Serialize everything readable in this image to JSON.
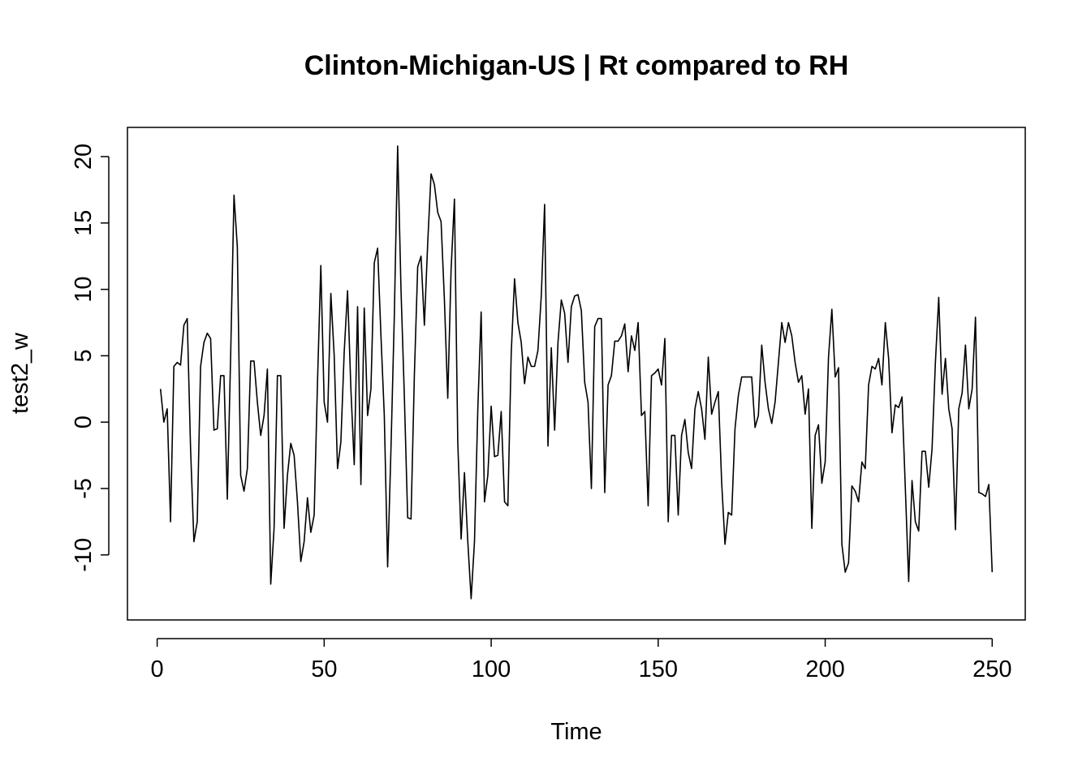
{
  "chart_data": {
    "type": "line",
    "title": "Clinton-Michigan-US | Rt compared to RH",
    "xlabel": "Time",
    "ylabel": "test2_w",
    "xlim": [
      -8.9,
      259.9
    ],
    "ylim": [
      -14.9,
      22.2
    ],
    "x_ticks": [
      0,
      50,
      100,
      150,
      200,
      250
    ],
    "x_tick_labels": [
      "0",
      "50",
      "100",
      "150",
      "200",
      "250"
    ],
    "y_ticks": [
      -10,
      -5,
      0,
      5,
      10,
      15,
      20
    ],
    "y_tick_labels": [
      "-10",
      "-5",
      "0",
      "5",
      "10",
      "15",
      "20"
    ],
    "grid": false,
    "line_color": "#000000",
    "x_start": 1,
    "series": [
      {
        "values": [
          2.5,
          0.0,
          1.0,
          -7.5,
          4.2,
          4.5,
          4.3,
          7.3,
          7.8,
          -2.0,
          -9.0,
          -7.5,
          4.2,
          6.0,
          6.7,
          6.3,
          -0.6,
          -0.5,
          3.5,
          3.5,
          -5.8,
          5.0,
          17.1,
          13.2,
          -4.0,
          -5.2,
          -3.5,
          4.6,
          4.6,
          1.5,
          -1.0,
          0.5,
          4.0,
          -12.2,
          -8.0,
          3.5,
          3.5,
          -8.0,
          -4.0,
          -1.6,
          -2.5,
          -6.0,
          -10.5,
          -9.0,
          -5.7,
          -8.3,
          -7.0,
          3.0,
          11.8,
          1.5,
          0.0,
          9.7,
          5.0,
          -3.5,
          -1.5,
          5.3,
          9.9,
          2.5,
          -3.2,
          8.7,
          -4.7,
          8.6,
          0.5,
          2.5,
          12.0,
          13.1,
          6.5,
          0.5,
          -10.9,
          -2.0,
          8.0,
          20.8,
          10.0,
          2.0,
          -7.2,
          -7.3,
          3.5,
          11.7,
          12.5,
          7.3,
          13.5,
          18.7,
          17.9,
          15.8,
          15.1,
          9.2,
          1.8,
          11.5,
          16.8,
          -1.5,
          -8.8,
          -3.8,
          -9.0,
          -13.3,
          -9.0,
          1.0,
          8.3,
          -6.0,
          -4.0,
          1.2,
          -2.6,
          -2.5,
          0.8,
          -6.0,
          -6.3,
          5.2,
          10.8,
          7.5,
          6.0,
          2.9,
          4.9,
          4.2,
          4.2,
          5.4,
          9.5,
          16.4,
          -1.8,
          5.6,
          -0.6,
          6.0,
          9.2,
          8.2,
          4.5,
          8.7,
          9.5,
          9.6,
          8.4,
          3.0,
          1.5,
          -5.0,
          7.2,
          7.8,
          7.8,
          -5.3,
          2.8,
          3.5,
          6.1,
          6.1,
          6.5,
          7.4,
          3.8,
          6.5,
          5.4,
          7.5,
          0.5,
          0.8,
          -6.3,
          3.5,
          3.7,
          4.0,
          2.8,
          6.3,
          -7.5,
          -1.0,
          -1.0,
          -7.0,
          -1.0,
          0.2,
          -2.3,
          -3.5,
          1.0,
          2.3,
          1.0,
          -1.3,
          4.9,
          0.6,
          1.5,
          2.3,
          -4.5,
          -9.2,
          -6.8,
          -7.0,
          -0.5,
          2.0,
          3.4,
          3.4,
          3.4,
          3.4,
          -0.4,
          0.5,
          5.8,
          3.0,
          1.0,
          -0.1,
          1.5,
          4.5,
          7.5,
          6.0,
          7.5,
          6.5,
          4.5,
          3.0,
          3.5,
          0.6,
          2.5,
          -8.0,
          -1.0,
          -0.2,
          -4.6,
          -3.0,
          4.9,
          8.5,
          3.4,
          4.1,
          -9.2,
          -11.3,
          -10.6,
          -4.8,
          -5.2,
          -6.0,
          -3.0,
          -3.5,
          2.8,
          4.2,
          4.0,
          4.8,
          2.8,
          7.5,
          4.8,
          -0.8,
          1.3,
          1.1,
          1.9,
          -5.0,
          -12.0,
          -4.4,
          -7.5,
          -8.2,
          -2.2,
          -2.2,
          -4.9,
          -2.0,
          4.5,
          9.4,
          2.1,
          4.8,
          1.0,
          -0.5,
          -8.1,
          1.0,
          2.2,
          5.8,
          1.0,
          2.5,
          7.9,
          -5.3,
          -5.4,
          -5.6,
          -4.7,
          -11.3
        ]
      }
    ]
  }
}
